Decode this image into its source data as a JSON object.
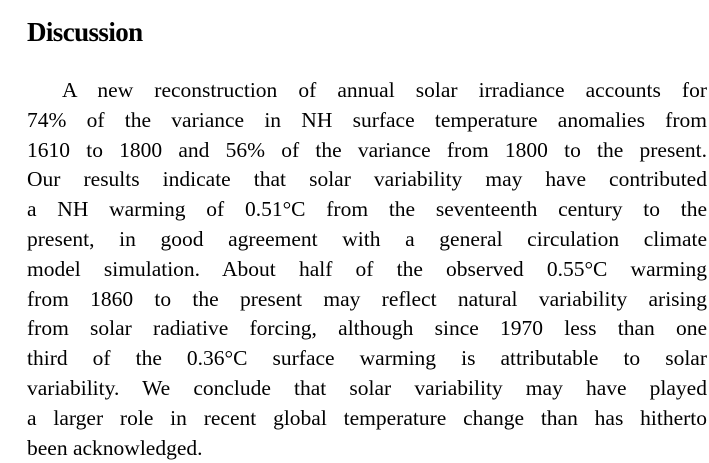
{
  "section": {
    "heading": "Discussion",
    "lines": [
      "A new reconstruction of annual solar irradiance accounts for",
      "74% of the variance in NH surface temperature anomalies from",
      "1610 to 1800 and 56% of the variance from 1800 to the present.",
      "Our results indicate that solar variability may have contributed",
      "a NH warming of 0.51°C from the seventeenth century to the",
      "present, in good agreement with a general circulation climate",
      "model simulation. About half of the observed 0.55°C warming",
      "from 1860 to the present may reflect natural variability arising",
      "from solar radiative forcing, although since 1970 less than one",
      "third of the 0.36°C surface warming is attributable to solar",
      "variability. We conclude that solar variability may have played",
      "a larger role in recent global temperature change than has hitherto",
      "been acknowledged."
    ]
  }
}
